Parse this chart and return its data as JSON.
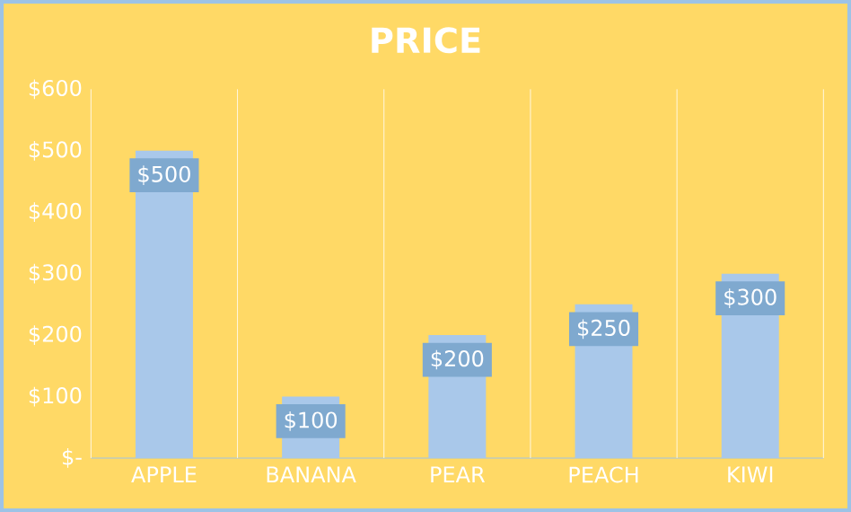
{
  "chart_data": {
    "type": "bar",
    "title": "PRICE",
    "categories": [
      "APPLE",
      "BANANA",
      "PEAR",
      "PEACH",
      "KIWI"
    ],
    "values": [
      500,
      100,
      200,
      250,
      300
    ],
    "value_labels": [
      "$500",
      "$100",
      "$200",
      "$250",
      "$300"
    ],
    "color": "#a9c8ea",
    "ylim": [
      0,
      600
    ],
    "yticks": [
      {
        "value": 0,
        "label": "$-"
      },
      {
        "value": 100,
        "label": "$100"
      },
      {
        "value": 200,
        "label": "$200"
      },
      {
        "value": 300,
        "label": "$300"
      },
      {
        "value": 400,
        "label": "$400"
      },
      {
        "value": 500,
        "label": "$500"
      },
      {
        "value": 600,
        "label": "$600"
      }
    ],
    "grid": "x"
  }
}
